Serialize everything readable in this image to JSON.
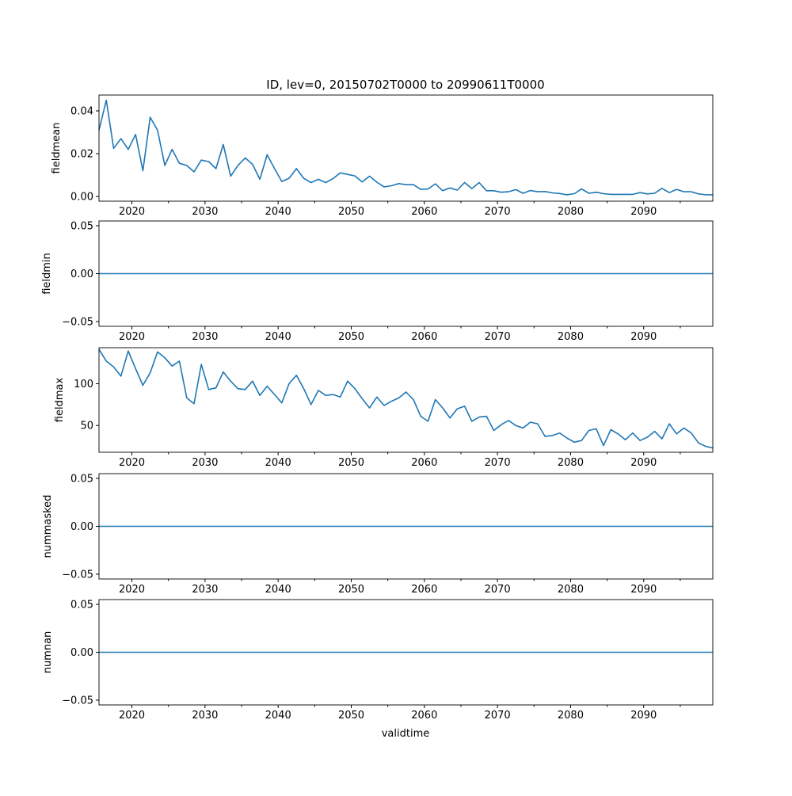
{
  "chart_data": {
    "type": "line",
    "title": "ID, lev=0, 20150702T0000 to 20990611T0000",
    "xlabel": "validtime",
    "x_start": 2015.5,
    "x_step": 1,
    "xlim": [
      2015.5,
      2099.45
    ],
    "x_major_ticks": [
      2020,
      2030,
      2040,
      2050,
      2060,
      2070,
      2080,
      2090
    ],
    "x_major_labels": [
      "2020",
      "2030",
      "2040",
      "2050",
      "2060",
      "2070",
      "2080",
      "2090"
    ],
    "x_minor_ticks": [
      2025,
      2035,
      2045,
      2055,
      2065,
      2075,
      2085,
      2095
    ],
    "line_color": "#1f77b4",
    "panels": [
      {
        "ylabel": "fieldmean",
        "ylim": [
          -0.0022,
          0.0474
        ],
        "yticks": [
          0.0,
          0.02,
          0.04
        ],
        "ytick_labels": [
          "0.00",
          "0.02",
          "0.04"
        ],
        "values": [
          0.031,
          0.045,
          0.0225,
          0.027,
          0.022,
          0.029,
          0.012,
          0.037,
          0.031,
          0.0145,
          0.022,
          0.0155,
          0.0145,
          0.0115,
          0.017,
          0.0163,
          0.013,
          0.0243,
          0.0095,
          0.0145,
          0.018,
          0.015,
          0.008,
          0.0195,
          0.013,
          0.007,
          0.0085,
          0.013,
          0.0085,
          0.0065,
          0.008,
          0.0065,
          0.0083,
          0.011,
          0.0103,
          0.0096,
          0.0068,
          0.0095,
          0.0067,
          0.0045,
          0.005,
          0.006,
          0.0055,
          0.0055,
          0.0033,
          0.0035,
          0.0059,
          0.0027,
          0.004,
          0.003,
          0.0065,
          0.0037,
          0.0065,
          0.0027,
          0.0027,
          0.002,
          0.0022,
          0.0032,
          0.0015,
          0.0028,
          0.0022,
          0.0023,
          0.0017,
          0.0014,
          0.0008,
          0.0013,
          0.0035,
          0.0015,
          0.002,
          0.0013,
          0.001,
          0.001,
          0.001,
          0.001,
          0.0018,
          0.0012,
          0.0015,
          0.0038,
          0.0018,
          0.0033,
          0.0022,
          0.0022,
          0.0012,
          0.0008,
          0.0008
        ]
      },
      {
        "ylabel": "fieldmin",
        "ylim": [
          -0.055,
          0.055
        ],
        "yticks": [
          -0.05,
          0.0,
          0.05
        ],
        "ytick_labels": [
          "−0.05",
          "0.00",
          "0.05"
        ],
        "constant_value": 0
      },
      {
        "ylabel": "fieldmax",
        "ylim": [
          18,
          143
        ],
        "yticks": [
          50,
          100
        ],
        "ytick_labels": [
          "50",
          "100"
        ],
        "values": [
          141,
          127,
          120,
          109,
          139,
          118,
          98,
          113,
          138,
          131,
          121,
          127,
          83,
          76,
          123,
          93,
          95,
          114,
          103,
          94,
          93,
          103,
          86,
          97,
          87,
          77,
          100,
          110,
          94,
          75,
          92,
          86,
          87,
          84,
          103,
          94,
          82,
          71,
          84,
          74,
          79,
          83,
          90,
          81,
          61,
          55,
          81,
          71,
          59,
          70,
          73,
          55,
          60,
          61,
          44,
          51,
          56,
          50,
          47,
          54,
          52,
          37,
          38,
          41,
          35,
          30,
          32,
          44,
          46,
          26,
          45,
          40,
          33,
          41,
          32,
          36,
          43,
          34,
          52,
          40,
          47,
          41,
          29,
          25,
          23
        ]
      },
      {
        "ylabel": "nummasked",
        "ylim": [
          -0.055,
          0.055
        ],
        "yticks": [
          -0.05,
          0.0,
          0.05
        ],
        "ytick_labels": [
          "−0.05",
          "0.00",
          "0.05"
        ],
        "constant_value": 0
      },
      {
        "ylabel": "numnan",
        "ylim": [
          -0.055,
          0.055
        ],
        "yticks": [
          -0.05,
          0.0,
          0.05
        ],
        "ytick_labels": [
          "−0.05",
          "0.00",
          "0.05"
        ],
        "constant_value": 0
      }
    ]
  }
}
